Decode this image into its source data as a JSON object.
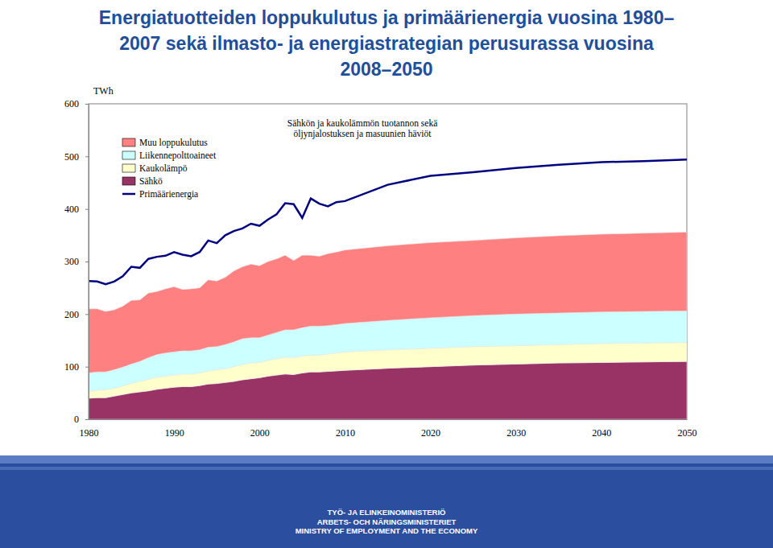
{
  "chart_data": {
    "type": "area",
    "title": [
      "Energiatuotteiden loppukulutus ja primäärienergia vuosina 1980–",
      "2007 sekä ilmasto- ja energiastrategian perusurassa vuosina",
      "2008–2050"
    ],
    "y_label": "TWh",
    "annotation": [
      "Sähkön ja kaukolämmön tuotannon sekä",
      "öljynjalostuksen ja masuunien häviöt"
    ],
    "stacked": true,
    "grid": false,
    "legend": "upper left",
    "xlim": [
      1980,
      2050
    ],
    "xticks": [
      1980,
      1990,
      2000,
      2010,
      2020,
      2030,
      2040,
      2050
    ],
    "ylim": [
      0,
      600
    ],
    "yticks": [
      0,
      100,
      200,
      300,
      400,
      500,
      600
    ],
    "x": [
      1980,
      1981,
      1982,
      1983,
      1984,
      1985,
      1986,
      1987,
      1988,
      1989,
      1990,
      1991,
      1992,
      1993,
      1994,
      1995,
      1996,
      1997,
      1998,
      1999,
      2000,
      2001,
      2002,
      2003,
      2004,
      2005,
      2006,
      2007,
      2008,
      2009,
      2010,
      2015,
      2020,
      2025,
      2030,
      2035,
      2040,
      2045,
      2050
    ],
    "series": [
      {
        "name": "Muu loppukulutus",
        "type": "area",
        "color": "#ff8080",
        "values": [
          122,
          120,
          115,
          114,
          116,
          121,
          117,
          123,
          120,
          122,
          124,
          117,
          118,
          118,
          128,
          125,
          128,
          135,
          137,
          140,
          137,
          140,
          140,
          142,
          132,
          138,
          135,
          133,
          137,
          138,
          140,
          142,
          143,
          143,
          145,
          147,
          148,
          149,
          150
        ]
      },
      {
        "name": "Liikennepolttoaineet",
        "type": "area",
        "color": "#ccffff",
        "values": [
          35,
          35,
          34,
          35,
          36,
          37,
          38,
          41,
          43,
          44,
          44,
          44,
          44,
          44,
          45,
          44,
          46,
          47,
          49,
          48,
          47,
          48,
          50,
          52,
          53,
          54,
          55,
          55,
          54,
          54,
          54,
          56,
          58,
          59,
          60,
          60,
          60,
          60,
          60
        ]
      },
      {
        "name": "Kaukolämpö",
        "type": "area",
        "color": "#ffffcc",
        "values": [
          13,
          14,
          15,
          15,
          16,
          18,
          20,
          22,
          23,
          23,
          23,
          24,
          24,
          24,
          25,
          26,
          26,
          28,
          29,
          30,
          29,
          30,
          31,
          32,
          32,
          32,
          32,
          32,
          33,
          34,
          35,
          35,
          35,
          35,
          35,
          35,
          36,
          36,
          36
        ]
      },
      {
        "name": "Sähkö",
        "type": "area",
        "color": "#993366",
        "values": [
          40,
          41,
          41,
          44,
          47,
          50,
          52,
          54,
          57,
          59,
          61,
          62,
          62,
          64,
          67,
          68,
          70,
          72,
          75,
          77,
          79,
          82,
          84,
          86,
          85,
          88,
          90,
          90,
          91,
          92,
          93,
          97,
          100,
          103,
          105,
          107,
          108,
          109,
          110
        ]
      },
      {
        "name": "Primäärienergia",
        "type": "line",
        "color": "#000080",
        "values": [
          263,
          262,
          257,
          262,
          272,
          290,
          288,
          305,
          309,
          311,
          318,
          313,
          310,
          318,
          340,
          335,
          350,
          358,
          363,
          372,
          368,
          380,
          390,
          411,
          409,
          383,
          420,
          410,
          405,
          413,
          415,
          446,
          463,
          470,
          478,
          484,
          489,
          491,
          494
        ]
      }
    ]
  },
  "footer": [
    "TYÖ- JA ELINKEINOMINISTERIÖ",
    "ARBETS- OCH NÄRINGSMINISTERIET",
    "MINISTRY OF EMPLOYMENT AND THE ECONOMY"
  ]
}
